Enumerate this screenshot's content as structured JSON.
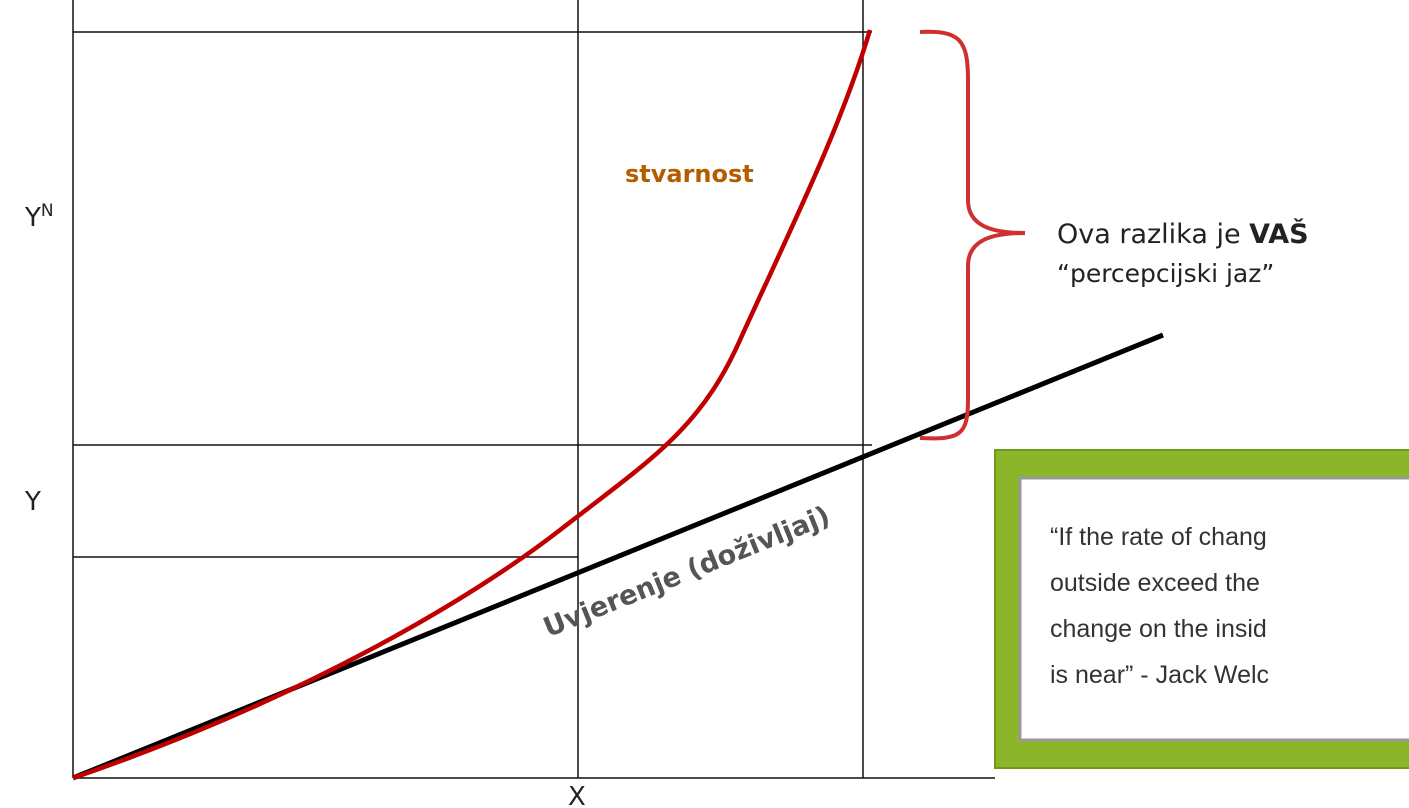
{
  "axis_labels": {
    "y_top": "Y",
    "y_top_superscript": "N",
    "y_low": "Y",
    "x": "X"
  },
  "curves": {
    "reality": "stvarnost",
    "belief": "Uvjerenje (doživljaj)"
  },
  "annotation": {
    "text": "Ova razlika je ",
    "emphasis": "VAŠ",
    "line2": "“percepcijski jaz”"
  },
  "quote": {
    "lines": [
      "“If the rate of chang",
      "outside exceed the",
      "change on the insid",
      "is near” - Jack Welc"
    ]
  }
}
